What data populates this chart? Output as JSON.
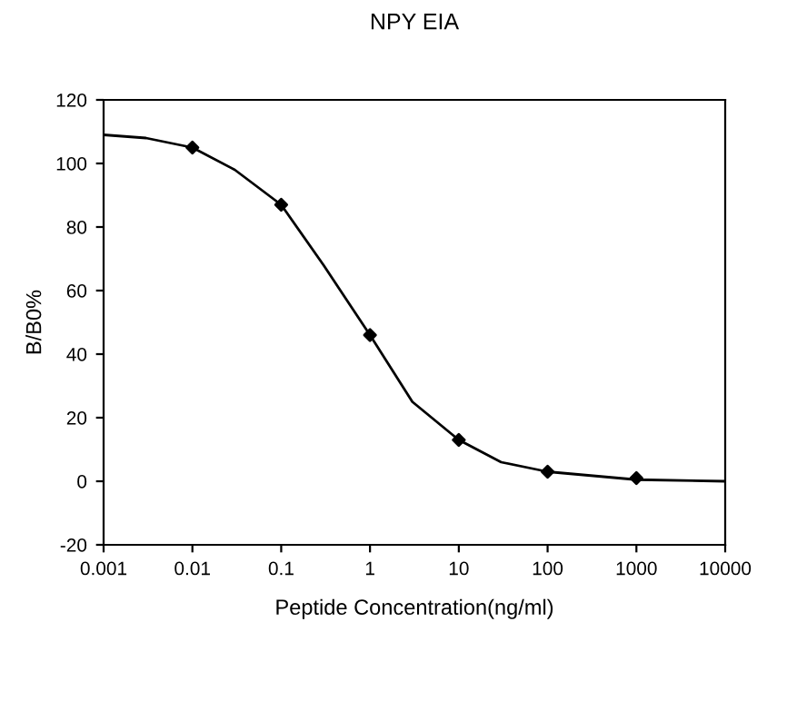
{
  "chart_data": {
    "type": "scatter",
    "title": "NPY EIA",
    "xlabel": "Peptide Concentration(ng/ml)",
    "ylabel": "B/B0%",
    "log": "x",
    "grid": false,
    "legend": false,
    "xlim": [
      0.001,
      10000
    ],
    "xticks": [
      0.001,
      0.01,
      0.1,
      1,
      10,
      100,
      1000,
      10000
    ],
    "ylim": [
      -20,
      120
    ],
    "yticks": [
      -20,
      0,
      20,
      40,
      60,
      80,
      100,
      120
    ],
    "series": [
      {
        "type": "line",
        "color": "#000000",
        "marker": "none",
        "x": [
          0.001,
          0.003,
          0.01,
          0.03,
          0.1,
          0.3,
          1,
          3,
          10,
          30,
          100,
          1000,
          10000
        ],
        "values": [
          109,
          108,
          105,
          98,
          87,
          68,
          46,
          25,
          13,
          6,
          3,
          0.5,
          0
        ]
      },
      {
        "color": "#000000",
        "marker": "diamond",
        "x": [
          0.01,
          0.1,
          1,
          10,
          100,
          1000
        ],
        "values": [
          105,
          87,
          46,
          13,
          3,
          1
        ]
      }
    ]
  }
}
